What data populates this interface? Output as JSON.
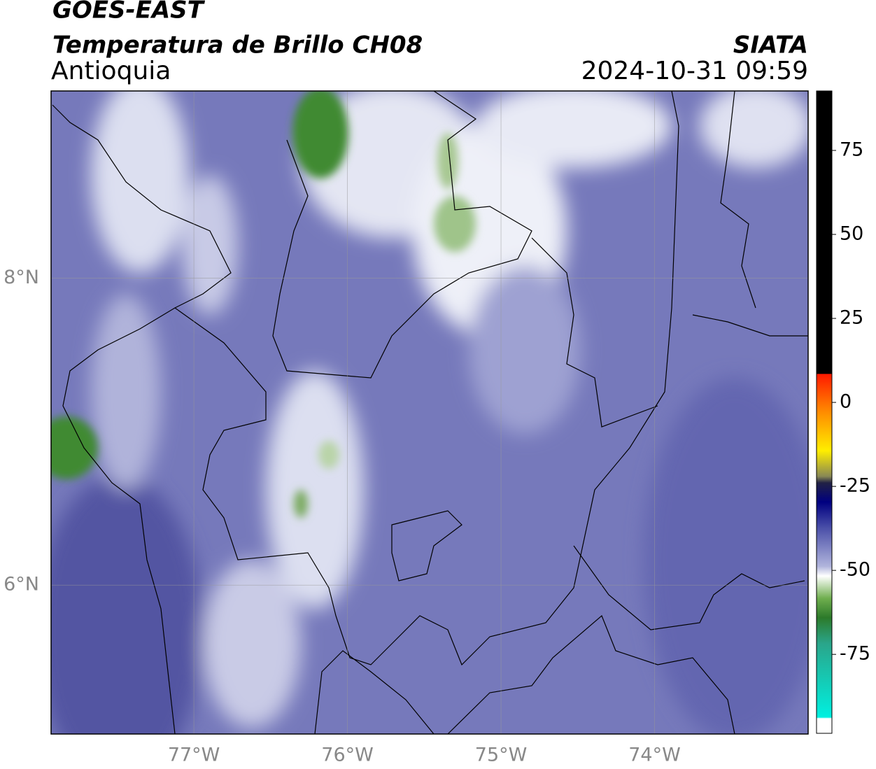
{
  "header": {
    "title": "GOES-EAST",
    "subtitle": "Temperatura de Brillo CH08",
    "region": "Antioquia",
    "source": "SIATA",
    "timestamp": "2024-10-31 09:59"
  },
  "map": {
    "xlim": [
      -77.93,
      -73.0
    ],
    "ylim": [
      5.03,
      9.22
    ],
    "xticks": [
      {
        "value": -77,
        "label": "77°W"
      },
      {
        "value": -76,
        "label": "76°W"
      },
      {
        "value": -75,
        "label": "75°W"
      },
      {
        "value": -74,
        "label": "74°W"
      }
    ],
    "yticks": [
      {
        "value": 8,
        "label": "8°N"
      },
      {
        "value": 6,
        "label": "6°N"
      }
    ],
    "grid": true
  },
  "colorbar": {
    "lim": [
      -98.5,
      92.7
    ],
    "ticks": [
      75,
      50,
      25,
      0,
      -25,
      -50,
      -75
    ]
  }
}
